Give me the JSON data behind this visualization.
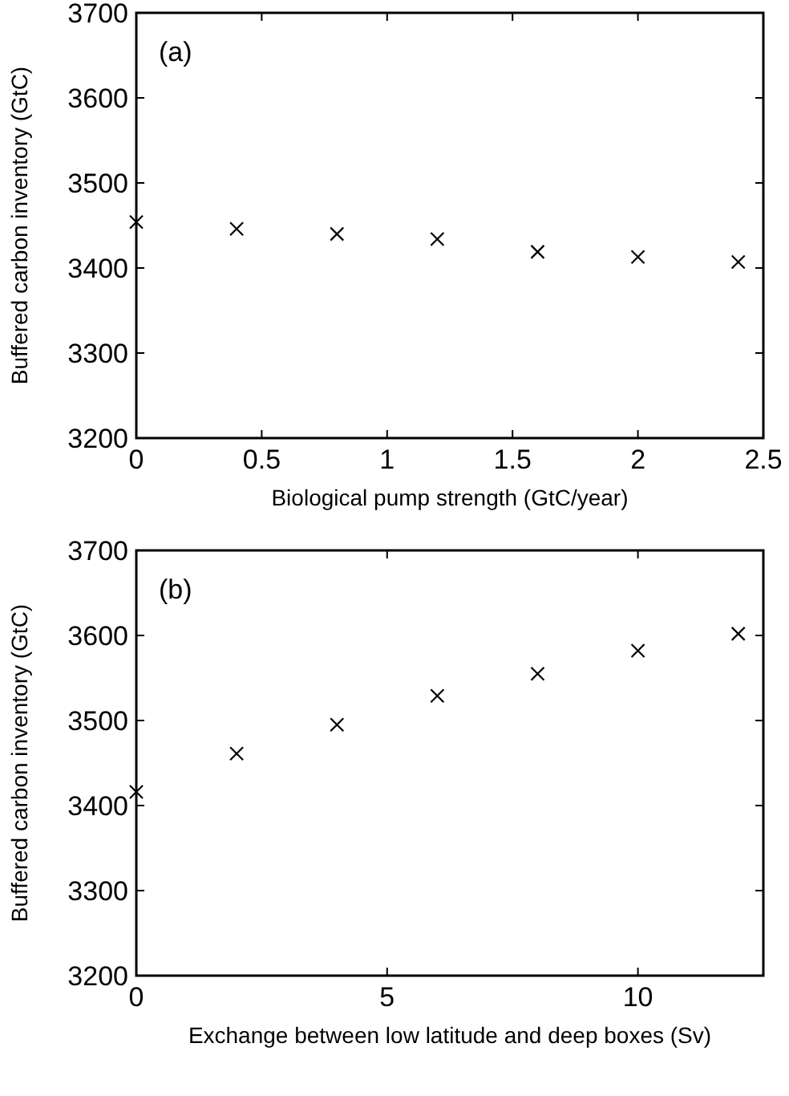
{
  "chart_data": [
    {
      "type": "scatter",
      "xlabel": "Biological pump strength (GtC/year)",
      "ylabel": "Buffered carbon inventory (GtC)",
      "annotations": [
        "(a)"
      ],
      "marker": "cross",
      "color": "#000000",
      "x": [
        0,
        0.4,
        0.8,
        1.2,
        1.6,
        2.0,
        2.4
      ],
      "values": [
        3454,
        3446,
        3440,
        3434,
        3419,
        3413,
        3407
      ],
      "xlim": [
        0,
        2.5
      ],
      "xticks": [
        0,
        0.5,
        1,
        1.5,
        2,
        2.5
      ],
      "ylim": [
        3200,
        3700
      ],
      "yticks": [
        3200,
        3300,
        3400,
        3500,
        3600,
        3700
      ]
    },
    {
      "type": "scatter",
      "xlabel": "Exchange between low latitude and deep boxes (Sv)",
      "ylabel": "Buffered carbon inventory (GtC)",
      "annotations": [
        "(b)"
      ],
      "marker": "cross",
      "color": "#000000",
      "x": [
        0,
        2,
        4,
        6,
        8,
        10,
        12
      ],
      "values": [
        3416,
        3461,
        3495,
        3529,
        3555,
        3582,
        3602
      ],
      "xlim": [
        0,
        12.5
      ],
      "xticks": [
        0,
        5,
        10
      ],
      "ylim": [
        3200,
        3700
      ],
      "yticks": [
        3200,
        3300,
        3400,
        3500,
        3600,
        3700
      ]
    }
  ]
}
